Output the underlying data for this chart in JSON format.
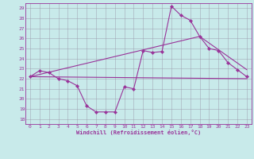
{
  "bg_color": "#c8eaea",
  "line_color": "#993399",
  "grid_color": "#9999aa",
  "xlim": [
    -0.5,
    23.5
  ],
  "ylim": [
    17.5,
    29.5
  ],
  "xticks": [
    0,
    1,
    2,
    3,
    4,
    5,
    6,
    7,
    8,
    9,
    10,
    11,
    12,
    13,
    14,
    15,
    16,
    17,
    18,
    19,
    20,
    21,
    22,
    23
  ],
  "yticks": [
    18,
    19,
    20,
    21,
    22,
    23,
    24,
    25,
    26,
    27,
    28,
    29
  ],
  "series1_x": [
    0,
    1,
    2,
    3,
    4,
    5,
    6,
    7,
    8,
    9,
    10,
    11,
    12,
    13,
    14,
    15,
    16,
    17,
    18,
    19,
    20,
    21,
    22,
    23
  ],
  "series1_y": [
    22.2,
    22.8,
    22.6,
    22.0,
    21.8,
    21.3,
    19.3,
    18.7,
    18.7,
    18.7,
    21.2,
    21.0,
    24.8,
    24.6,
    24.7,
    29.2,
    28.3,
    27.8,
    26.2,
    25.0,
    24.8,
    23.6,
    22.9,
    22.2
  ],
  "series2_x": [
    0,
    23
  ],
  "series2_y": [
    22.2,
    22.0
  ],
  "series3_x": [
    0,
    18,
    23
  ],
  "series3_y": [
    22.2,
    26.2,
    22.9
  ],
  "xlabel": "Windchill (Refroidissement éolien,°C)"
}
